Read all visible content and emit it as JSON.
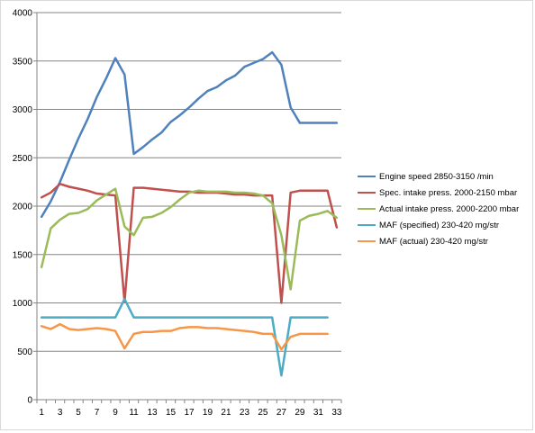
{
  "chart_data": {
    "type": "line",
    "title": "",
    "xlabel": "",
    "ylabel": "",
    "x": [
      1,
      2,
      3,
      4,
      5,
      6,
      7,
      8,
      9,
      10,
      11,
      12,
      13,
      14,
      15,
      16,
      17,
      18,
      19,
      20,
      21,
      22,
      23,
      24,
      25,
      26,
      27,
      28,
      29,
      30,
      31,
      32,
      33
    ],
    "x_ticks": [
      1,
      3,
      5,
      7,
      9,
      11,
      13,
      15,
      17,
      19,
      21,
      23,
      25,
      27,
      29,
      31,
      33
    ],
    "ylim": [
      0,
      4000
    ],
    "y_ticks": [
      0,
      500,
      1000,
      1500,
      2000,
      2500,
      3000,
      3500,
      4000
    ],
    "grid": "horizontal",
    "legend_position": "right",
    "series": [
      {
        "name": "Engine speed 2850-3150  /min",
        "color": "#4f81bd",
        "values": [
          1890,
          2050,
          2250,
          2480,
          2700,
          2900,
          3130,
          3320,
          3530,
          3360,
          2540,
          2610,
          2690,
          2760,
          2870,
          2940,
          3020,
          3110,
          3190,
          3230,
          3300,
          3350,
          3440,
          3480,
          3520,
          3590,
          3460,
          3020,
          2860,
          2860,
          2860,
          2860,
          2860
        ]
      },
      {
        "name": "Spec. intake press. 2000-2150  mbar",
        "color": "#c0504d",
        "values": [
          2090,
          2140,
          2230,
          2200,
          2180,
          2160,
          2130,
          2120,
          2110,
          1010,
          2190,
          2190,
          2180,
          2170,
          2160,
          2150,
          2150,
          2140,
          2140,
          2140,
          2130,
          2120,
          2120,
          2110,
          2110,
          2110,
          1000,
          2140,
          2160,
          2160,
          2160,
          2160,
          1780
        ]
      },
      {
        "name": "Actual intake press. 2000-2200  mbar",
        "color": "#9bbb59",
        "values": [
          1370,
          1770,
          1860,
          1920,
          1930,
          1970,
          2060,
          2120,
          2180,
          1790,
          1700,
          1880,
          1890,
          1930,
          1990,
          2070,
          2140,
          2160,
          2150,
          2150,
          2150,
          2140,
          2140,
          2130,
          2110,
          2030,
          1700,
          1140,
          1850,
          1900,
          1920,
          1950,
          1880
        ]
      },
      {
        "name": "MAF (specified) 230-420  mg/str",
        "color": "#4bacc6",
        "values": [
          850,
          850,
          850,
          850,
          850,
          850,
          850,
          850,
          850,
          1040,
          850,
          850,
          850,
          850,
          850,
          850,
          850,
          850,
          850,
          850,
          850,
          850,
          850,
          850,
          850,
          850,
          250,
          850,
          850,
          850,
          850,
          850,
          null
        ]
      },
      {
        "name": "MAF (actual) 230-420  mg/str",
        "color": "#f79646",
        "values": [
          760,
          730,
          780,
          730,
          720,
          730,
          740,
          730,
          710,
          530,
          680,
          700,
          700,
          710,
          710,
          740,
          750,
          750,
          740,
          740,
          730,
          720,
          710,
          700,
          680,
          680,
          520,
          650,
          680,
          680,
          680,
          680,
          null
        ]
      }
    ]
  }
}
